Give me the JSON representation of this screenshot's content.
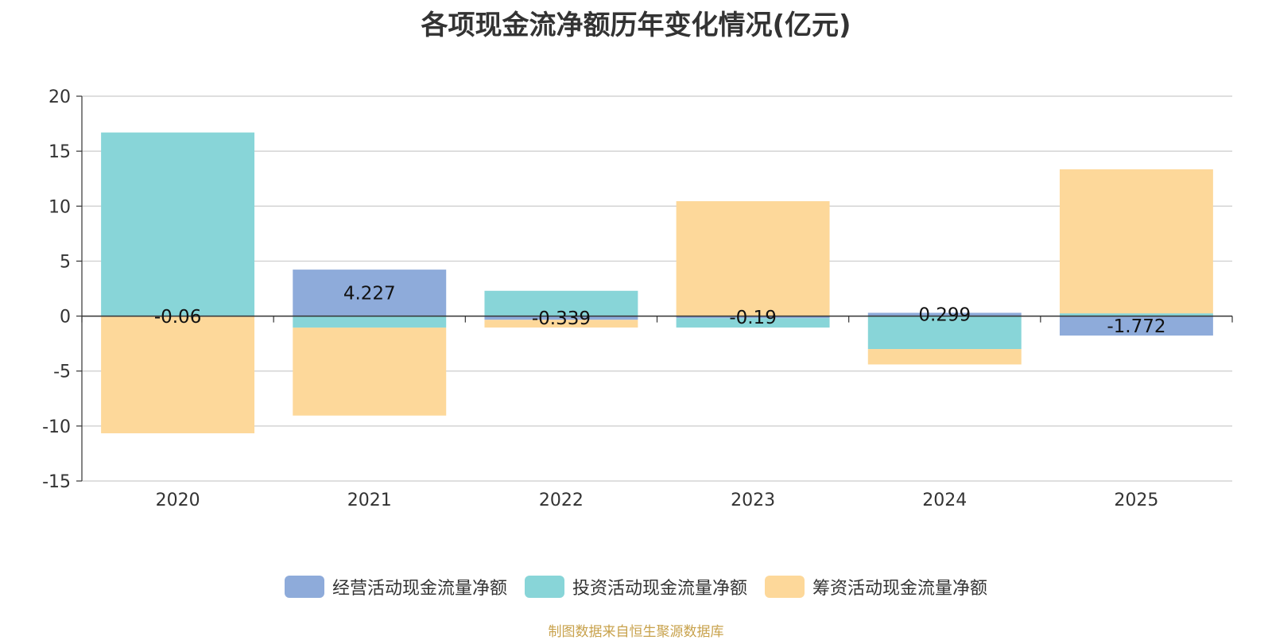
{
  "chart_data": {
    "type": "bar",
    "title": "各项现金流净额历年变化情况(亿元)",
    "categories": [
      "2020",
      "2021",
      "2022",
      "2023",
      "2024",
      "2025"
    ],
    "series": [
      {
        "name": "经营活动现金流量净额",
        "color": "#8eabda",
        "values": [
          -0.06,
          4.227,
          -0.339,
          -0.19,
          0.299,
          -1.772
        ],
        "labels": [
          "-0.06",
          "4.227",
          "-0.339",
          "-0.19",
          "0.299",
          "-1.772"
        ]
      },
      {
        "name": "投资活动现金流量净额",
        "color": "#88d5d8",
        "values": [
          16.7,
          -1.05,
          2.3,
          -0.85,
          -3.0,
          0.25
        ]
      },
      {
        "name": "筹资活动现金流量净额",
        "color": "#fdd89a",
        "values": [
          -10.6,
          -8.0,
          -0.7,
          10.45,
          -1.4,
          13.1
        ]
      }
    ],
    "ylim": [
      -15,
      20
    ],
    "yticks": [
      20,
      15,
      10,
      5,
      0,
      -5,
      -10,
      -15
    ],
    "grid": true,
    "legend_position": "bottom",
    "stacked": true
  },
  "source_note": "制图数据来自恒生聚源数据库"
}
